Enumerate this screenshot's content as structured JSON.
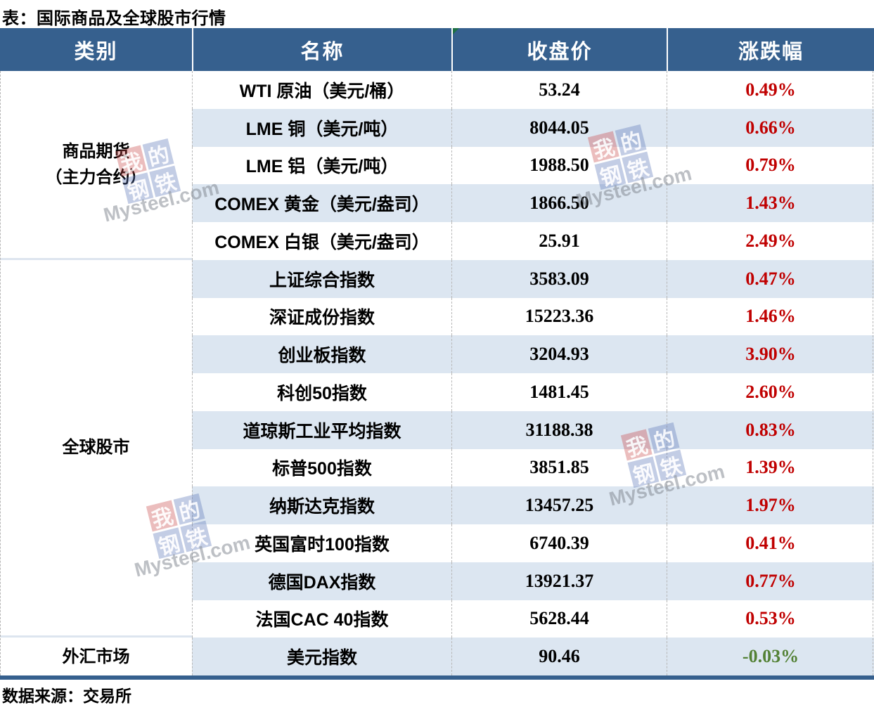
{
  "title": "表：国际商品及全球股市行情",
  "source": "数据来源：交易所",
  "watermark": {
    "blocks": [
      "我",
      "的",
      "钢",
      "铁"
    ],
    "text": "Mysteel.com"
  },
  "colors": {
    "header_bg": "#36608E",
    "alt_row_bg": "#DCE6F1",
    "up_red": "#C00000",
    "down_green": "#538135",
    "bottom_bar": "#36608E",
    "corner_marker_green": "#1E7145",
    "dashed_line": "#B7B7B7"
  },
  "table": {
    "headers": [
      "类别",
      "名称",
      "收盘价",
      "涨跌幅"
    ],
    "groups": [
      {
        "category_lines": [
          "商品期货",
          "（主力合约）"
        ],
        "rows": [
          {
            "name": "WTI 原油（美元/桶）",
            "close": "53.24",
            "change": "0.49%",
            "direction": "up"
          },
          {
            "name": "LME 铜（美元/吨）",
            "close": "8044.05",
            "change": "0.66%",
            "direction": "up"
          },
          {
            "name": "LME 铝（美元/吨）",
            "close": "1988.50",
            "change": "0.79%",
            "direction": "up"
          },
          {
            "name": "COMEX 黄金（美元/盎司）",
            "close": "1866.50",
            "change": "1.43%",
            "direction": "up"
          },
          {
            "name": "COMEX 白银（美元/盎司）",
            "close": "25.91",
            "change": "2.49%",
            "direction": "up"
          }
        ]
      },
      {
        "category_lines": [
          "全球股市"
        ],
        "rows": [
          {
            "name": "上证综合指数",
            "close": "3583.09",
            "change": "0.47%",
            "direction": "up"
          },
          {
            "name": "深证成份指数",
            "close": "15223.36",
            "change": "1.46%",
            "direction": "up"
          },
          {
            "name": "创业板指数",
            "close": "3204.93",
            "change": "3.90%",
            "direction": "up"
          },
          {
            "name": "科创50指数",
            "close": "1481.45",
            "change": "2.60%",
            "direction": "up"
          },
          {
            "name": "道琼斯工业平均指数",
            "close": "31188.38",
            "change": "0.83%",
            "direction": "up"
          },
          {
            "name": "标普500指数",
            "close": "3851.85",
            "change": "1.39%",
            "direction": "up"
          },
          {
            "name": "纳斯达克指数",
            "close": "13457.25",
            "change": "1.97%",
            "direction": "up"
          },
          {
            "name": "英国富时100指数",
            "close": "6740.39",
            "change": "0.41%",
            "direction": "up"
          },
          {
            "name": "德国DAX指数",
            "close": "13921.37",
            "change": "0.77%",
            "direction": "up"
          },
          {
            "name": "法国CAC 40指数",
            "close": "5628.44",
            "change": "0.53%",
            "direction": "up"
          }
        ]
      },
      {
        "category_lines": [
          "外汇市场"
        ],
        "rows": [
          {
            "name": "美元指数",
            "close": "90.46",
            "change": "-0.03%",
            "direction": "down"
          }
        ]
      }
    ]
  },
  "chart_data": {
    "type": "table",
    "title": "表：国际商品及全球股市行情",
    "columns": [
      "类别",
      "名称",
      "收盘价",
      "涨跌幅"
    ],
    "rows": [
      [
        "商品期货（主力合约）",
        "WTI 原油（美元/桶）",
        53.24,
        "0.49%"
      ],
      [
        "商品期货（主力合约）",
        "LME 铜（美元/吨）",
        8044.05,
        "0.66%"
      ],
      [
        "商品期货（主力合约）",
        "LME 铝（美元/吨）",
        1988.5,
        "0.79%"
      ],
      [
        "商品期货（主力合约）",
        "COMEX 黄金（美元/盎司）",
        1866.5,
        "1.43%"
      ],
      [
        "商品期货（主力合约）",
        "COMEX 白银（美元/盎司）",
        25.91,
        "2.49%"
      ],
      [
        "全球股市",
        "上证综合指数",
        3583.09,
        "0.47%"
      ],
      [
        "全球股市",
        "深证成份指数",
        15223.36,
        "1.46%"
      ],
      [
        "全球股市",
        "创业板指数",
        3204.93,
        "3.90%"
      ],
      [
        "全球股市",
        "科创50指数",
        1481.45,
        "2.60%"
      ],
      [
        "全球股市",
        "道琼斯工业平均指数",
        31188.38,
        "0.83%"
      ],
      [
        "全球股市",
        "标普500指数",
        3851.85,
        "1.39%"
      ],
      [
        "全球股市",
        "纳斯达克指数",
        13457.25,
        "1.97%"
      ],
      [
        "全球股市",
        "英国富时100指数",
        6740.39,
        "0.41%"
      ],
      [
        "全球股市",
        "德国DAX指数",
        13921.37,
        "0.77%"
      ],
      [
        "全球股市",
        "法国CAC 40指数",
        5628.44,
        "0.53%"
      ],
      [
        "外汇市场",
        "美元指数",
        90.46,
        "-0.03%"
      ]
    ],
    "source": "数据来源：交易所"
  }
}
